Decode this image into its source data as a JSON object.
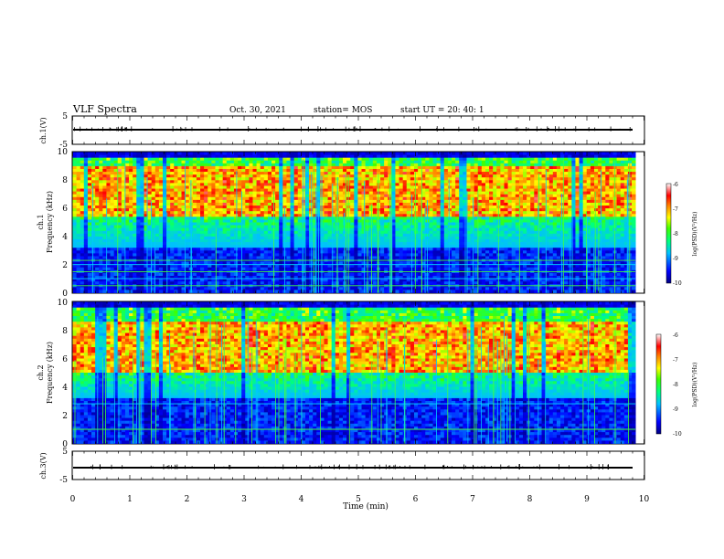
{
  "header": {
    "title": "VLF Spectra",
    "date": "Oct. 30, 2021",
    "station": "station= MOS",
    "start_ut": "start  UT =   20: 40: 1"
  },
  "chart_data": [
    {
      "type": "line",
      "panel": "ch1-waveform",
      "ylabel": "ch.1(V)",
      "ylim": [
        -5,
        5
      ],
      "yticks": [
        "5",
        "-5"
      ],
      "xlim": [
        0,
        10
      ],
      "description_series": [
        {
          "values": [
            -1,
            -1
          ]
        }
      ]
    },
    {
      "type": "heatmap",
      "panel": "ch1-spectrogram",
      "ylabel": "ch.1\nFrequency (kHz)",
      "ylabel_line1": "ch.1",
      "ylabel_line2": "Frequency (kHz)",
      "ylim": [
        0,
        10
      ],
      "yticks": [
        "0",
        "2",
        "4",
        "6",
        "8",
        "10"
      ],
      "xlim": [
        0,
        9.85
      ],
      "colorbar": {
        "label": "log(PSD)(V²/Hz)",
        "range": [
          -10,
          -6
        ],
        "ticks": [
          "-6",
          "-7",
          "-8",
          "-9",
          "-10"
        ]
      },
      "intense_band_khz": [
        5.5,
        9.0
      ],
      "horizontal_lines_khz": [
        0.5,
        1.0,
        1.5,
        2.0,
        2.3
      ]
    },
    {
      "type": "heatmap",
      "panel": "ch2-spectrogram",
      "ylabel_line1": "ch.2",
      "ylabel_line2": "Frequency (kHz)",
      "ylim": [
        0,
        10
      ],
      "yticks": [
        "0",
        "2",
        "4",
        "6",
        "8",
        "10"
      ],
      "xlim": [
        0,
        9.85
      ],
      "colorbar": {
        "label": "log(PSD)(V²/Hz)",
        "range": [
          -10,
          -6
        ],
        "ticks": [
          "-6",
          "-7",
          "-8",
          "-9",
          "-10"
        ]
      },
      "intense_band_khz": [
        5.0,
        8.5
      ],
      "horizontal_lines_khz": [
        1.0,
        2.8
      ]
    },
    {
      "type": "line",
      "panel": "ch3-waveform",
      "ylabel": "ch.3(V)",
      "ylim": [
        -5,
        5
      ],
      "yticks": [
        "5",
        "-5"
      ],
      "xlim": [
        0,
        10
      ],
      "xlabel": "Time  (min)",
      "xticks": [
        "0",
        "1",
        "2",
        "3",
        "4",
        "5",
        "6",
        "7",
        "8",
        "9",
        "10"
      ],
      "description_series": [
        {
          "values": [
            -1,
            -1
          ]
        }
      ]
    }
  ]
}
